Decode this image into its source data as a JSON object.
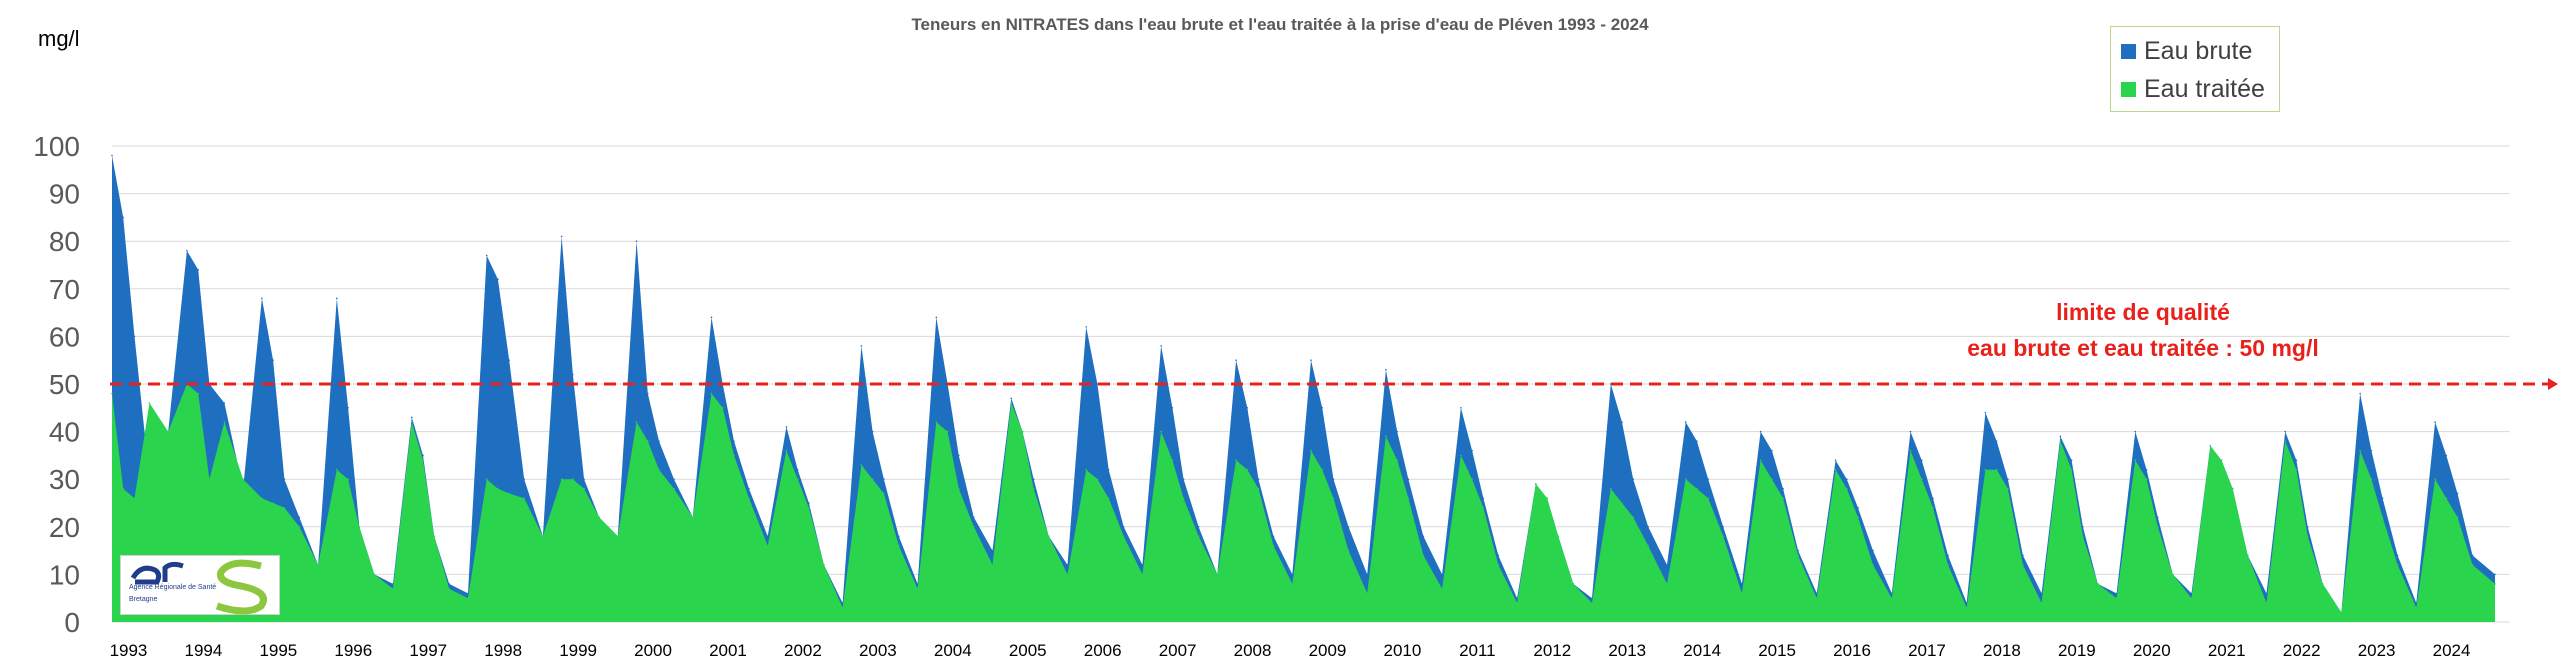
{
  "chart_data": {
    "type": "area",
    "title": "Teneurs en NITRATES dans l'eau brute et l'eau traitée  à la prise d'eau de Pléven 1993 - 2024",
    "ylabel": "mg/l",
    "ylim": [
      0,
      100
    ],
    "yticks": [
      0,
      10,
      20,
      30,
      40,
      50,
      60,
      70,
      80,
      90,
      100
    ],
    "grid": true,
    "legend_position": "top-right",
    "x_tick_labels": [
      "1993",
      "1994",
      "1995",
      "1996",
      "1997",
      "1998",
      "1999",
      "2000",
      "2001",
      "2002",
      "2003",
      "2004",
      "2005",
      "2006",
      "2007",
      "2008",
      "2009",
      "2010",
      "2011",
      "2012",
      "2013",
      "2014",
      "2015",
      "2016",
      "2017",
      "2018",
      "2019",
      "2020",
      "2021",
      "2022",
      "2023",
      "2024"
    ],
    "series": [
      {
        "name": "Eau brute",
        "color": "#1f6fc0",
        "x": [
          1993.0,
          1993.15,
          1993.3,
          1993.5,
          1993.75,
          1994.0,
          1994.15,
          1994.3,
          1994.5,
          1994.75,
          1995.0,
          1995.15,
          1995.3,
          1995.5,
          1995.75,
          1996.0,
          1996.15,
          1996.3,
          1996.5,
          1996.75,
          1997.0,
          1997.15,
          1997.3,
          1997.5,
          1997.75,
          1998.0,
          1998.15,
          1998.3,
          1998.5,
          1998.75,
          1999.0,
          1999.15,
          1999.3,
          1999.5,
          1999.75,
          2000.0,
          2000.15,
          2000.3,
          2000.5,
          2000.75,
          2001.0,
          2001.15,
          2001.3,
          2001.5,
          2001.75,
          2002.0,
          2002.15,
          2002.3,
          2002.5,
          2002.75,
          2003.0,
          2003.15,
          2003.3,
          2003.5,
          2003.75,
          2004.0,
          2004.15,
          2004.3,
          2004.5,
          2004.75,
          2005.0,
          2005.15,
          2005.3,
          2005.5,
          2005.75,
          2006.0,
          2006.15,
          2006.3,
          2006.5,
          2006.75,
          2007.0,
          2007.15,
          2007.3,
          2007.5,
          2007.75,
          2008.0,
          2008.15,
          2008.3,
          2008.5,
          2008.75,
          2009.0,
          2009.15,
          2009.3,
          2009.5,
          2009.75,
          2010.0,
          2010.15,
          2010.3,
          2010.5,
          2010.75,
          2011.0,
          2011.15,
          2011.3,
          2011.5,
          2011.75,
          2012.0,
          2012.15,
          2012.3,
          2012.5,
          2012.75,
          2013.0,
          2013.15,
          2013.3,
          2013.5,
          2013.75,
          2014.0,
          2014.15,
          2014.3,
          2014.5,
          2014.75,
          2015.0,
          2015.15,
          2015.3,
          2015.5,
          2015.75,
          2016.0,
          2016.15,
          2016.3,
          2016.5,
          2016.75,
          2017.0,
          2017.15,
          2017.3,
          2017.5,
          2017.75,
          2018.0,
          2018.15,
          2018.3,
          2018.5,
          2018.75,
          2019.0,
          2019.15,
          2019.3,
          2019.5,
          2019.75,
          2020.0,
          2020.15,
          2020.3,
          2020.5,
          2020.75,
          2021.0,
          2021.15,
          2021.3,
          2021.5,
          2021.75,
          2022.0,
          2022.15,
          2022.3,
          2022.5,
          2022.75,
          2023.0,
          2023.15,
          2023.3,
          2023.5,
          2023.75,
          2024.0,
          2024.15,
          2024.3,
          2024.5,
          2024.8
        ],
        "values": [
          98,
          85,
          60,
          30,
          40,
          78,
          74,
          50,
          46,
          28,
          68,
          55,
          30,
          22,
          12,
          68,
          45,
          20,
          10,
          8,
          43,
          35,
          18,
          8,
          6,
          77,
          72,
          55,
          30,
          18,
          81,
          52,
          30,
          22,
          18,
          80,
          48,
          38,
          30,
          22,
          64,
          50,
          38,
          28,
          18,
          41,
          32,
          25,
          12,
          4,
          58,
          40,
          30,
          18,
          8,
          64,
          50,
          35,
          22,
          15,
          47,
          40,
          30,
          18,
          12,
          62,
          50,
          32,
          20,
          12,
          58,
          45,
          30,
          20,
          10,
          55,
          45,
          30,
          18,
          10,
          55,
          45,
          30,
          20,
          10,
          53,
          40,
          30,
          18,
          10,
          45,
          36,
          26,
          14,
          5,
          29,
          26,
          18,
          8,
          5,
          50,
          42,
          30,
          20,
          12,
          42,
          38,
          30,
          20,
          8,
          40,
          36,
          28,
          15,
          6,
          34,
          30,
          24,
          15,
          6,
          40,
          34,
          26,
          14,
          4,
          44,
          38,
          30,
          14,
          6,
          39,
          34,
          20,
          8,
          6,
          40,
          32,
          22,
          10,
          6,
          37,
          34,
          28,
          14,
          6,
          40,
          34,
          20,
          8,
          2,
          48,
          36,
          26,
          14,
          4,
          42,
          35,
          27,
          14,
          10
        ]
      },
      {
        "name": "Eau traitée",
        "color": "#2ad44c",
        "x": [
          1993.0,
          1993.15,
          1993.3,
          1993.5,
          1993.75,
          1994.0,
          1994.15,
          1994.3,
          1994.5,
          1994.75,
          1995.0,
          1995.15,
          1995.3,
          1995.5,
          1995.75,
          1996.0,
          1996.15,
          1996.3,
          1996.5,
          1996.75,
          1997.0,
          1997.15,
          1997.3,
          1997.5,
          1997.75,
          1998.0,
          1998.15,
          1998.3,
          1998.5,
          1998.75,
          1999.0,
          1999.15,
          1999.3,
          1999.5,
          1999.75,
          2000.0,
          2000.15,
          2000.3,
          2000.5,
          2000.75,
          2001.0,
          2001.15,
          2001.3,
          2001.5,
          2001.75,
          2002.0,
          2002.15,
          2002.3,
          2002.5,
          2002.75,
          2003.0,
          2003.15,
          2003.3,
          2003.5,
          2003.75,
          2004.0,
          2004.15,
          2004.3,
          2004.5,
          2004.75,
          2005.0,
          2005.15,
          2005.3,
          2005.5,
          2005.75,
          2006.0,
          2006.15,
          2006.3,
          2006.5,
          2006.75,
          2007.0,
          2007.15,
          2007.3,
          2007.5,
          2007.75,
          2008.0,
          2008.15,
          2008.3,
          2008.5,
          2008.75,
          2009.0,
          2009.15,
          2009.3,
          2009.5,
          2009.75,
          2010.0,
          2010.15,
          2010.3,
          2010.5,
          2010.75,
          2011.0,
          2011.15,
          2011.3,
          2011.5,
          2011.75,
          2012.0,
          2012.15,
          2012.3,
          2012.5,
          2012.75,
          2013.0,
          2013.15,
          2013.3,
          2013.5,
          2013.75,
          2014.0,
          2014.15,
          2014.3,
          2014.5,
          2014.75,
          2015.0,
          2015.15,
          2015.3,
          2015.5,
          2015.75,
          2016.0,
          2016.15,
          2016.3,
          2016.5,
          2016.75,
          2017.0,
          2017.15,
          2017.3,
          2017.5,
          2017.75,
          2018.0,
          2018.15,
          2018.3,
          2018.5,
          2018.75,
          2019.0,
          2019.15,
          2019.3,
          2019.5,
          2019.75,
          2020.0,
          2020.15,
          2020.3,
          2020.5,
          2020.75,
          2021.0,
          2021.15,
          2021.3,
          2021.5,
          2021.75,
          2022.0,
          2022.15,
          2022.3,
          2022.5,
          2022.75,
          2023.0,
          2023.15,
          2023.3,
          2023.5,
          2023.75,
          2024.0,
          2024.15,
          2024.3,
          2024.5,
          2024.8
        ],
        "values": [
          48,
          28,
          26,
          46,
          40,
          50,
          48,
          30,
          42,
          30,
          26,
          25,
          24,
          20,
          12,
          32,
          30,
          20,
          10,
          7,
          42,
          34,
          18,
          7,
          5,
          30,
          28,
          27,
          26,
          18,
          30,
          30,
          28,
          22,
          18,
          42,
          38,
          32,
          28,
          22,
          48,
          45,
          35,
          26,
          16,
          36,
          30,
          24,
          12,
          3,
          33,
          30,
          27,
          16,
          7,
          42,
          40,
          28,
          20,
          12,
          46,
          40,
          28,
          18,
          10,
          32,
          30,
          26,
          18,
          10,
          40,
          34,
          26,
          18,
          10,
          34,
          32,
          28,
          16,
          8,
          36,
          32,
          26,
          15,
          6,
          39,
          34,
          26,
          14,
          7,
          35,
          30,
          24,
          12,
          4,
          29,
          26,
          18,
          8,
          4,
          28,
          25,
          22,
          16,
          8,
          30,
          28,
          26,
          18,
          6,
          34,
          30,
          26,
          14,
          5,
          32,
          28,
          22,
          12,
          5,
          36,
          30,
          24,
          12,
          3,
          32,
          32,
          28,
          12,
          4,
          38,
          32,
          18,
          8,
          5,
          34,
          30,
          20,
          10,
          5,
          37,
          34,
          28,
          14,
          4,
          38,
          32,
          18,
          8,
          2,
          36,
          30,
          22,
          12,
          3,
          30,
          26,
          22,
          12,
          8
        ]
      }
    ],
    "annotations": {
      "quality_limit_value": 50,
      "quality_limit_line1": "limite de qualité",
      "quality_limit_line2": "eau brute et eau traitée : 50 mg/l"
    }
  },
  "logo": {
    "text": "Agence Régionale de Santé",
    "subtext": "Bretagne"
  },
  "colors": {
    "limit_line": "#e8211b",
    "grid": "#d9d9d9",
    "axis_text": "#595959"
  }
}
